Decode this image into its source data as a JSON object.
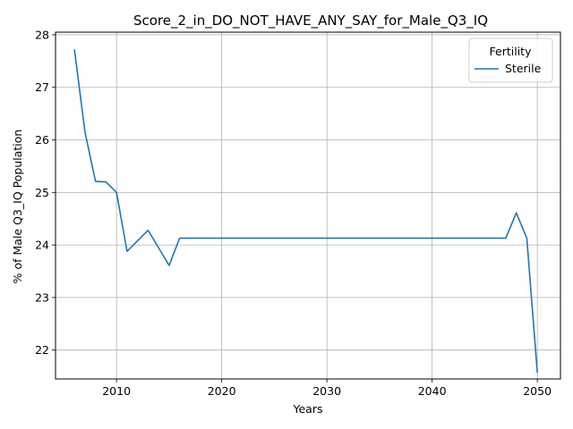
{
  "chart_data": {
    "type": "line",
    "title": "Score_2_in_DO_NOT_HAVE_ANY_SAY_for_Male_Q3_IQ",
    "xlabel": "Years",
    "ylabel": "% of Male Q3_IQ Population",
    "xlim": [
      2004.2,
      2052.2
    ],
    "ylim": [
      21.45,
      28.05
    ],
    "xticks": [
      2010,
      2020,
      2030,
      2040,
      2050
    ],
    "yticks": [
      22,
      23,
      24,
      25,
      26,
      27,
      28
    ],
    "grid": true,
    "legend": {
      "title": "Fertility",
      "placement": "top-right"
    },
    "series": [
      {
        "name": "Sterile",
        "color": "#1f77b4",
        "x": [
          2006,
          2007,
          2008,
          2009,
          2010,
          2011,
          2013,
          2015,
          2016,
          2047,
          2048,
          2049,
          2050
        ],
        "y": [
          27.72,
          26.15,
          25.21,
          25.2,
          25.0,
          23.88,
          24.28,
          23.61,
          24.13,
          24.13,
          24.61,
          24.13,
          21.57
        ]
      }
    ]
  }
}
